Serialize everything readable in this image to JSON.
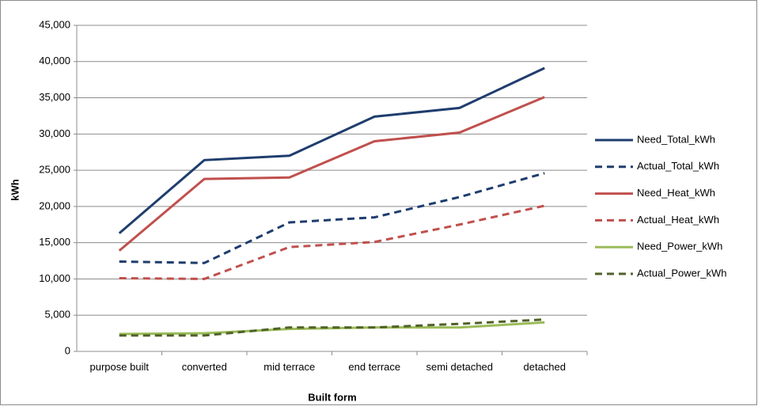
{
  "chart_data": {
    "type": "line",
    "x_label": "Built form",
    "y_label": "kWh",
    "categories": [
      "purpose built",
      "converted",
      "mid terrace",
      "end terrace",
      "semi detached",
      "detached"
    ],
    "series": [
      {
        "name": "Need_Total_kWh",
        "color": "#1f3d6e",
        "dashed": false,
        "values": [
          16300,
          26400,
          27000,
          32400,
          33600,
          39100
        ]
      },
      {
        "name": "Actual_Total_kWh",
        "color": "#1f3d6e",
        "dashed": true,
        "values": [
          12400,
          12200,
          17800,
          18500,
          21300,
          24600
        ]
      },
      {
        "name": "Need_Heat_kWh",
        "color": "#c0504d",
        "dashed": false,
        "values": [
          13900,
          23800,
          24000,
          29000,
          30200,
          35100
        ]
      },
      {
        "name": "Actual_Heat_kWh",
        "color": "#c0504d",
        "dashed": true,
        "values": [
          10100,
          10000,
          14400,
          15100,
          17500,
          20100
        ]
      },
      {
        "name": "Need_Power_kWh",
        "color": "#9bbb59",
        "dashed": false,
        "values": [
          2400,
          2500,
          3100,
          3300,
          3300,
          4000
        ]
      },
      {
        "name": "Actual_Power_kWh",
        "color": "#4f6228",
        "dashed": true,
        "values": [
          2200,
          2200,
          3300,
          3300,
          3800,
          4400
        ]
      }
    ],
    "ylim": [
      0,
      45000
    ],
    "yticks": [
      0,
      {
        "value": 5000,
        "label": "5,000"
      },
      {
        "value": 10000,
        "label": "10,000"
      },
      {
        "value": 15000,
        "label": "15,000"
      },
      {
        "value": 20000,
        "label": "20,000"
      },
      {
        "value": 25000,
        "label": "25,000"
      },
      {
        "value": 30000,
        "label": "30,000"
      },
      {
        "value": 35000,
        "label": "35,000"
      },
      {
        "value": 40000,
        "label": "40,000"
      },
      {
        "value": 45000,
        "label": "45,000"
      }
    ],
    "grid": true,
    "legend": "right"
  }
}
